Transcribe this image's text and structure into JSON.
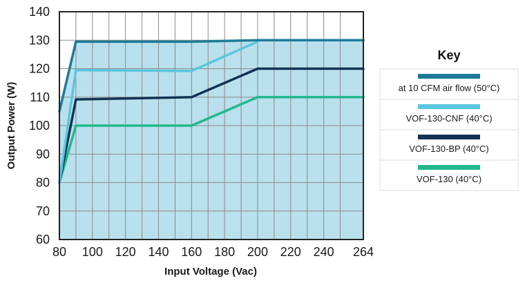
{
  "chart_data": {
    "type": "line",
    "title": "",
    "xlabel": "Input Voltage (Vac)",
    "ylabel": "Output Power (W)",
    "xlim": [
      80,
      264
    ],
    "ylim": [
      60,
      140
    ],
    "x_ticks": [
      80,
      100,
      120,
      140,
      160,
      180,
      200,
      220,
      240,
      264
    ],
    "y_ticks": [
      60,
      70,
      80,
      90,
      100,
      110,
      120,
      130,
      140
    ],
    "grid": true,
    "plot_background": "#c3e5f0",
    "shaded_area_color": "#b9e0ec",
    "legend": {
      "title": "Key",
      "placement": "right"
    },
    "series": [
      {
        "name": "at 10 CFM air flow (50°C)",
        "color": "#1f7a99",
        "x": [
          80,
          90,
          160,
          200,
          264
        ],
        "y": [
          105,
          129.5,
          129.5,
          130,
          130
        ]
      },
      {
        "name": "VOF-130-CNF (40°C)",
        "color": "#5ac6e0",
        "x": [
          80,
          90,
          160,
          200
        ],
        "y": [
          80,
          119.5,
          119.2,
          129.5
        ]
      },
      {
        "name": "VOF-130-BP (40°C)",
        "color": "#133253",
        "x": [
          80,
          90,
          160,
          200,
          264
        ],
        "y": [
          80,
          109.2,
          110,
          120,
          120
        ]
      },
      {
        "name": "VOF-130 (40°C)",
        "color": "#22b88f",
        "x": [
          80,
          90,
          160,
          200,
          264
        ],
        "y": [
          80,
          100,
          100,
          110,
          110
        ]
      }
    ]
  }
}
